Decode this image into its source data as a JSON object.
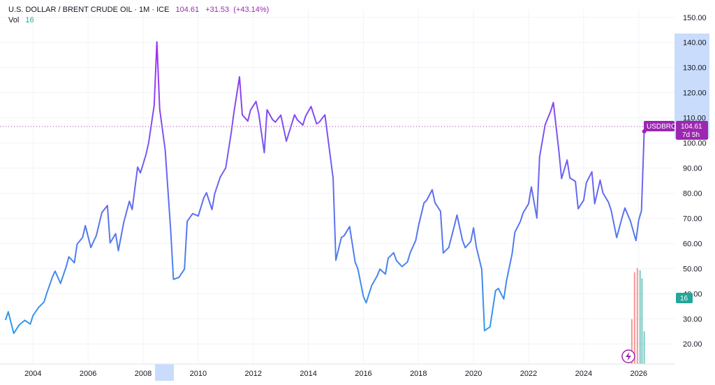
{
  "legend": {
    "symbol": "U.S. DOLLAR / BRENT CRUDE OIL · 1M · ICE",
    "last": "104.61",
    "change": "+31.53",
    "change_pct": "(+43.14%)",
    "vol_label": "Vol",
    "vol_value": "16"
  },
  "badges": {
    "symbol": "USDBRO",
    "price": "104.61",
    "countdown": "7d 5h",
    "vol": "16"
  },
  "colors": {
    "line_low": "#2e9bea",
    "line_high": "#a32cf4",
    "up_vol": "#26a69a",
    "down_vol": "#ef5350",
    "axis_highlight": "#c9dcfb",
    "price_badge": "#9c27b0",
    "vol_badge": "#26a69a"
  },
  "chart_data": {
    "type": "line",
    "title": "U.S. DOLLAR / BRENT CRUDE OIL · 1M · ICE",
    "xlabel": "",
    "ylabel": "",
    "xlim": [
      2002.8,
      2027.3
    ],
    "ylim": [
      12,
      153
    ],
    "x_ticks": [
      "2004",
      "2006",
      "2008",
      "2010",
      "2012",
      "2014",
      "2016",
      "2018",
      "2020",
      "2022",
      "2024",
      "2026"
    ],
    "y_ticks": [
      "150.00",
      "140.00",
      "130.00",
      "120.00",
      "110.00",
      "100.00",
      "90.00",
      "80.00",
      "70.00",
      "60.00",
      "50.00",
      "40.00",
      "30.00",
      "20.00"
    ],
    "highlighted_y_range": [
      97,
      140
    ],
    "highlighted_x_range": [
      2008.4,
      2009.1
    ],
    "series": [
      {
        "name": "USDBRO",
        "x": [
          2003.0,
          2003.1,
          2003.3,
          2003.5,
          2003.7,
          2003.9,
          2004.0,
          2004.2,
          2004.4,
          2004.5,
          2004.7,
          2004.8,
          2005.0,
          2005.2,
          2005.3,
          2005.5,
          2005.6,
          2005.8,
          2005.9,
          2006.1,
          2006.3,
          2006.5,
          2006.7,
          2006.8,
          2007.0,
          2007.1,
          2007.3,
          2007.5,
          2007.6,
          2007.8,
          2007.9,
          2008.1,
          2008.2,
          2008.4,
          2008.5,
          2008.6,
          2008.8,
          2009.0,
          2009.1,
          2009.3,
          2009.5,
          2009.6,
          2009.8,
          2010.0,
          2010.2,
          2010.3,
          2010.5,
          2010.6,
          2010.8,
          2011.0,
          2011.2,
          2011.3,
          2011.5,
          2011.6,
          2011.8,
          2011.9,
          2012.1,
          2012.2,
          2012.4,
          2012.5,
          2012.7,
          2012.8,
          2013.0,
          2013.2,
          2013.3,
          2013.5,
          2013.6,
          2013.8,
          2013.9,
          2014.1,
          2014.3,
          2014.4,
          2014.6,
          2014.7,
          2014.9,
          2015.0,
          2015.2,
          2015.3,
          2015.5,
          2015.7,
          2015.8,
          2016.0,
          2016.1,
          2016.3,
          2016.5,
          2016.6,
          2016.8,
          2016.9,
          2017.1,
          2017.2,
          2017.4,
          2017.6,
          2017.7,
          2017.9,
          2018.0,
          2018.2,
          2018.3,
          2018.5,
          2018.6,
          2018.8,
          2018.9,
          2019.1,
          2019.3,
          2019.4,
          2019.6,
          2019.7,
          2019.9,
          2020.0,
          2020.1,
          2020.3,
          2020.4,
          2020.6,
          2020.8,
          2020.9,
          2021.1,
          2021.2,
          2021.4,
          2021.5,
          2021.7,
          2021.8,
          2022.0,
          2022.1,
          2022.3,
          2022.4,
          2022.6,
          2022.8,
          2022.9,
          2023.1,
          2023.2,
          2023.4,
          2023.5,
          2023.7,
          2023.8,
          2024.0,
          2024.1,
          2024.3,
          2024.4,
          2024.6,
          2024.7,
          2024.9,
          2025.0,
          2025.2,
          2025.4,
          2025.5,
          2025.7,
          2025.9,
          2026.0,
          2026.1,
          2026.2
        ],
        "y": [
          29.5,
          32.8,
          24.2,
          27.6,
          29.4,
          27.9,
          31.3,
          34.5,
          36.7,
          40.2,
          46.5,
          49.0,
          44.1,
          50.6,
          54.7,
          52.3,
          59.7,
          62.4,
          67.1,
          58.4,
          63.2,
          72.3,
          75.1,
          60.2,
          63.9,
          57.1,
          68.6,
          76.8,
          73.5,
          90.4,
          88.1,
          95.3,
          100.1,
          114.9,
          140.2,
          113.5,
          97.1,
          65.1,
          45.7,
          46.5,
          49.8,
          68.8,
          71.9,
          70.9,
          78.1,
          80.2,
          73.5,
          79.8,
          86.4,
          90.1,
          104.2,
          112.3,
          126.3,
          111.2,
          108.7,
          113.1,
          116.5,
          111.5,
          96.1,
          113.2,
          109.3,
          108.3,
          111.1,
          100.7,
          104.2,
          111.2,
          109.2,
          107.1,
          110.7,
          114.5,
          107.6,
          108.3,
          111.2,
          102.9,
          85.9,
          53.3,
          62.4,
          63.1,
          66.7,
          52.6,
          49.8,
          38.8,
          36.4,
          43.2,
          47.1,
          49.8,
          47.8,
          54.1,
          56.3,
          53.2,
          50.8,
          52.6,
          56.3,
          61.2,
          66.9,
          76.1,
          77.2,
          81.4,
          76.2,
          72.8,
          56.2,
          58.4,
          66.9,
          71.3,
          61.2,
          58.3,
          60.8,
          66.2,
          58.7,
          49.6,
          25.3,
          26.8,
          41.2,
          42.1,
          37.9,
          45.3,
          55.8,
          64.4,
          68.7,
          72.1,
          75.8,
          82.5,
          70.1,
          94.5,
          107.2,
          112.6,
          116.1,
          96.8,
          85.8,
          93.2,
          86.1,
          84.7,
          73.8,
          77.2,
          84.2,
          88.5,
          75.8,
          85.2,
          80.1,
          76.4,
          73.2,
          62.3,
          70.5,
          74.1,
          68.9,
          61.1,
          69.2,
          73.1,
          104.61
        ]
      }
    ],
    "volume": [
      {
        "x": 2025.75,
        "value": 22,
        "dir": "down"
      },
      {
        "x": 2025.85,
        "value": 45,
        "dir": "down"
      },
      {
        "x": 2025.95,
        "value": 47,
        "dir": "down"
      },
      {
        "x": 2026.05,
        "value": 46,
        "dir": "up"
      },
      {
        "x": 2026.12,
        "value": 42,
        "dir": "up"
      },
      {
        "x": 2026.2,
        "value": 16,
        "dir": "up"
      }
    ]
  }
}
